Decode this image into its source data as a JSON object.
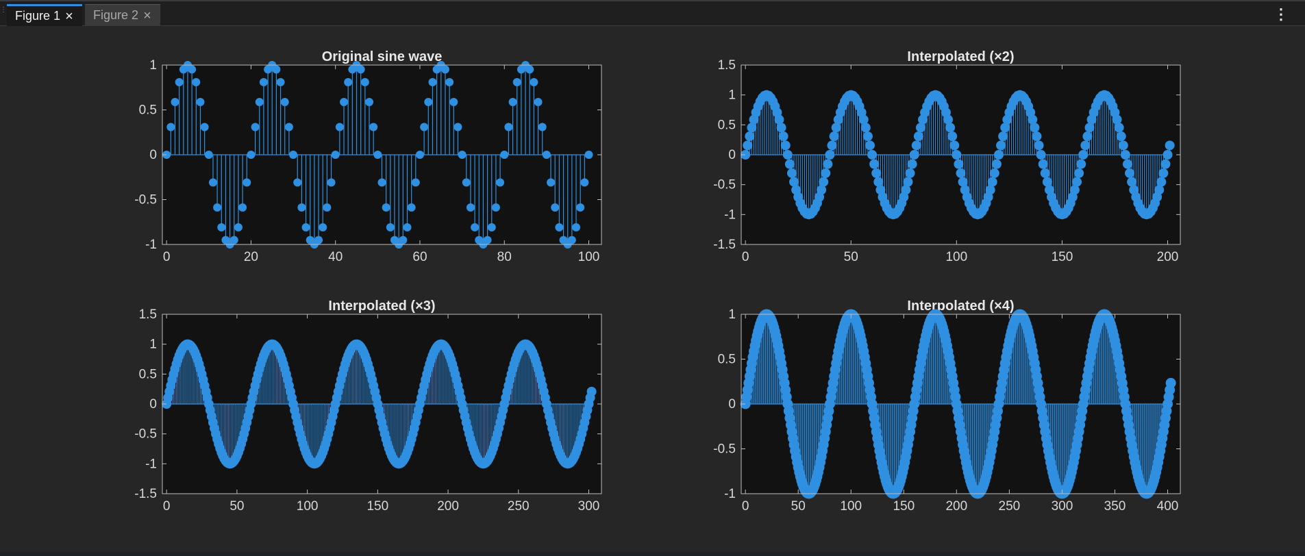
{
  "tabs": [
    {
      "label": "Figure 1",
      "active": true,
      "close_icon": "close-icon"
    },
    {
      "label": "Figure 2",
      "active": false,
      "close_icon": "close-icon"
    }
  ],
  "menu_icon": "kebab-menu-icon",
  "colors": {
    "background": "#262626",
    "axes_background": "#121212",
    "axes_border": "#bfbfbf",
    "stem": "#2f8fe0",
    "marker": "#2f8fe0"
  },
  "chart_data": [
    {
      "type": "stem",
      "title": "Original sine wave",
      "function": "sin(2*pi*n/20)",
      "n_start": 1,
      "n_count": 101,
      "xlim": [
        -1,
        103
      ],
      "ylim": [
        -1,
        1
      ],
      "xticks": [
        0,
        20,
        40,
        60,
        80,
        100
      ],
      "yticks": [
        -1,
        -0.5,
        0,
        0.5,
        1
      ],
      "xlabel": "",
      "ylabel": "",
      "grid": false
    },
    {
      "type": "stem",
      "title": "Interpolated (×2)",
      "function": "sin(2*pi*n/40)",
      "n_start": 1,
      "n_count": 202,
      "xlim": [
        -2,
        206
      ],
      "ylim": [
        -1.5,
        1.5
      ],
      "xticks": [
        0,
        50,
        100,
        150,
        200
      ],
      "yticks": [
        -1.5,
        -1,
        -0.5,
        0,
        0.5,
        1,
        1.5
      ],
      "xlabel": "",
      "ylabel": "",
      "grid": false
    },
    {
      "type": "stem",
      "title": "Interpolated (×3)",
      "function": "sin(2*pi*n/60)",
      "n_start": 1,
      "n_count": 303,
      "xlim": [
        -3,
        309
      ],
      "ylim": [
        -1.5,
        1.5
      ],
      "xticks": [
        0,
        50,
        100,
        150,
        200,
        250,
        300
      ],
      "yticks": [
        -1.5,
        -1,
        -0.5,
        0,
        0.5,
        1,
        1.5
      ],
      "xlabel": "",
      "ylabel": "",
      "grid": false
    },
    {
      "type": "stem",
      "title": "Interpolated (×4)",
      "function": "sin(2*pi*n/80)",
      "n_start": 1,
      "n_count": 404,
      "xlim": [
        -4,
        412
      ],
      "ylim": [
        -1,
        1
      ],
      "xticks": [
        0,
        50,
        100,
        150,
        200,
        250,
        300,
        350,
        400
      ],
      "yticks": [
        -1,
        -0.5,
        0,
        0.5,
        1
      ],
      "xlabel": "",
      "ylabel": "",
      "grid": false
    }
  ]
}
